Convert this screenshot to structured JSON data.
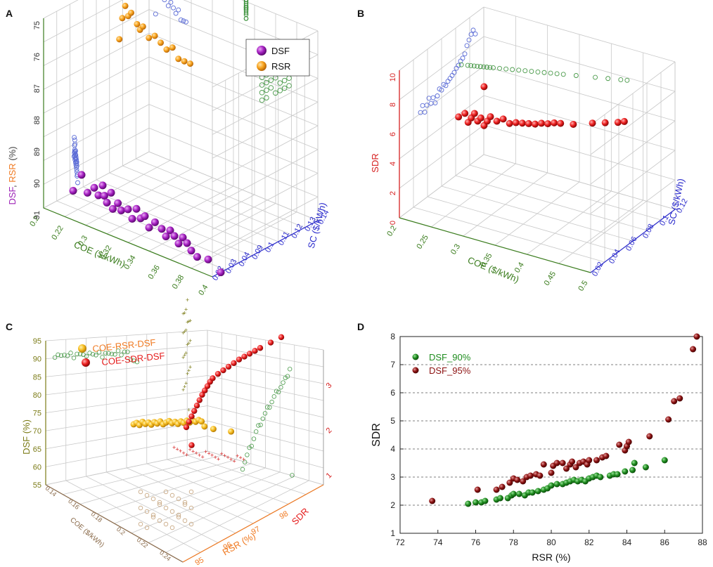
{
  "chart_data": [
    {
      "panel": "A",
      "type": "scatter",
      "legend": [
        "DSF",
        "RSR"
      ],
      "legend_placement": "top-right",
      "axes": {
        "x": {
          "label": "COE ($/kWh)",
          "ticks": [
            "0.2",
            "0.22",
            "0.3",
            "0.32",
            "0.34",
            "0.36",
            "0.38",
            "0.4"
          ]
        },
        "y": {
          "label": "SC ($/kWh)",
          "ticks": [
            "0.02",
            "0.03",
            "0.04",
            "0.09",
            "0.1",
            "0.11",
            "0.12",
            "0.13",
            "0.14"
          ]
        },
        "z": {
          "label_dsf": "DSF",
          "label_sep": ", ",
          "label_rsr": "RSR",
          "label_unit": " (%)",
          "ticks": [
            "91",
            "90",
            "89",
            "88",
            "87",
            "76",
            "75"
          ]
        }
      },
      "series": [
        {
          "name": "DSF",
          "color": "#9b1fb5",
          "points": [
            [
              0.225,
              90.8
            ],
            [
              0.235,
              89.8
            ],
            [
              0.242,
              90.6
            ],
            [
              0.25,
              90.2
            ],
            [
              0.255,
              90.5
            ],
            [
              0.26,
              89.9
            ],
            [
              0.262,
              90.4
            ],
            [
              0.265,
              90.7
            ],
            [
              0.27,
              90.1
            ],
            [
              0.272,
              90.9
            ],
            [
              0.278,
              90.5
            ],
            [
              0.282,
              90.8
            ],
            [
              0.29,
              90.6
            ],
            [
              0.295,
              91.0
            ],
            [
              0.3,
              90.4
            ],
            [
              0.305,
              90.8
            ],
            [
              0.31,
              90.6
            ],
            [
              0.315,
              91.1
            ],
            [
              0.322,
              90.7
            ],
            [
              0.33,
              90.9
            ],
            [
              0.335,
              91.2
            ],
            [
              0.34,
              90.8
            ],
            [
              0.345,
              91.0
            ],
            [
              0.35,
              91.3
            ],
            [
              0.355,
              90.9
            ],
            [
              0.36,
              91.1
            ],
            [
              0.365,
              91.4
            ],
            [
              0.372,
              91.6
            ],
            [
              0.385,
              91.5
            ],
            [
              0.4,
              91.9
            ]
          ]
        },
        {
          "name": "RSR",
          "color": "#f4a21e",
          "points": [
            [
              0.23,
              75.6
            ],
            [
              0.235,
              75.1
            ],
            [
              0.24,
              74.8
            ],
            [
              0.245,
              75.0
            ],
            [
              0.25,
              74.9
            ],
            [
              0.26,
              75.1
            ],
            [
              0.265,
              75.2
            ],
            [
              0.27,
              75.1
            ],
            [
              0.28,
              75.3
            ],
            [
              0.29,
              75.2
            ],
            [
              0.3,
              75.3
            ],
            [
              0.31,
              75.4
            ],
            [
              0.32,
              75.3
            ],
            [
              0.33,
              75.5
            ],
            [
              0.34,
              75.5
            ],
            [
              0.35,
              75.5
            ]
          ]
        }
      ]
    },
    {
      "panel": "B",
      "type": "scatter",
      "axes": {
        "x": {
          "label": "COE ($/kWh)",
          "ticks": [
            "0.2",
            "0.25",
            "0.3",
            "0.35",
            "0.4",
            "0.45",
            "0.5"
          ]
        },
        "y": {
          "label": "SC ($/kWh)",
          "ticks": [
            "0.02",
            "0.04",
            "0.06",
            "0.08",
            "0.1",
            "0.12"
          ]
        },
        "z": {
          "label": "SDR",
          "ticks": [
            "0",
            "2",
            "4",
            "6",
            "8",
            "10"
          ]
        }
      },
      "series": [
        {
          "name": "",
          "color": "#e51c1c",
          "points": [
            [
              0.22,
              5.2
            ],
            [
              0.23,
              5.6
            ],
            [
              0.235,
              5.0
            ],
            [
              0.24,
              5.4
            ],
            [
              0.245,
              5.8
            ],
            [
              0.25,
              5.3
            ],
            [
              0.255,
              5.6
            ],
            [
              0.26,
              5.1
            ],
            [
              0.265,
              5.5
            ],
            [
              0.27,
              5.9
            ],
            [
              0.28,
              5.7
            ],
            [
              0.29,
              6.0
            ],
            [
              0.3,
              5.8
            ],
            [
              0.31,
              6.0
            ],
            [
              0.32,
              6.1
            ],
            [
              0.33,
              6.2
            ],
            [
              0.34,
              6.3
            ],
            [
              0.35,
              6.5
            ],
            [
              0.36,
              6.6
            ],
            [
              0.37,
              6.8
            ],
            [
              0.38,
              6.9
            ],
            [
              0.4,
              7.1
            ],
            [
              0.43,
              7.6
            ],
            [
              0.45,
              7.9
            ],
            [
              0.47,
              8.2
            ],
            [
              0.48,
              8.4
            ],
            [
              0.26,
              8.0
            ]
          ]
        }
      ]
    },
    {
      "panel": "C",
      "type": "scatter",
      "legend": [
        "COE-RSR-DSF",
        "COE-SDR-DSF"
      ],
      "legend_placement": "top-left",
      "axes": {
        "x": {
          "label": "RSR (%)",
          "ticks": [
            "95",
            "96",
            "97",
            "98"
          ]
        },
        "x2": {
          "label": "SDR",
          "ticks": [
            "1",
            "2",
            "3"
          ]
        },
        "y": {
          "label": "COE ($/kWh)",
          "ticks": [
            "0.14",
            "0.16",
            "0.18",
            "0.2",
            "0.22",
            "0.24"
          ]
        },
        "z": {
          "label": "DSF (%)",
          "ticks": [
            "55",
            "60",
            "65",
            "70",
            "75",
            "80",
            "85",
            "90",
            "95"
          ]
        }
      },
      "series": [
        {
          "name": "COE-RSR-DSF",
          "color": "#f4b71e",
          "points": [
            [
              94.9,
              71.8
            ],
            [
              95.0,
              72.2
            ],
            [
              95.1,
              71.6
            ],
            [
              95.2,
              72.5
            ],
            [
              95.3,
              71.9
            ],
            [
              95.4,
              72.3
            ],
            [
              95.5,
              71.7
            ],
            [
              95.6,
              72.4
            ],
            [
              95.7,
              72.0
            ],
            [
              95.8,
              72.6
            ],
            [
              95.9,
              71.8
            ],
            [
              96.0,
              72.3
            ],
            [
              96.1,
              72.7
            ],
            [
              96.2,
              72.1
            ],
            [
              96.3,
              72.5
            ],
            [
              96.4,
              71.9
            ],
            [
              96.5,
              72.6
            ],
            [
              96.6,
              72.2
            ],
            [
              96.7,
              72.8
            ],
            [
              96.8,
              72.3
            ],
            [
              96.9,
              72.9
            ],
            [
              97.0,
              72.5
            ],
            [
              97.1,
              73.0
            ],
            [
              97.2,
              72.6
            ],
            [
              97.3,
              71.2
            ],
            [
              97.6,
              70.5
            ],
            [
              98.2,
              69.8
            ]
          ]
        },
        {
          "name": "COE-SDR-DSF",
          "color": "#e51c1c",
          "points": [
            [
              1.1,
              71.0
            ],
            [
              1.15,
              72.5
            ],
            [
              1.2,
              74.0
            ],
            [
              1.25,
              75.5
            ],
            [
              1.3,
              77.0
            ],
            [
              1.35,
              78.5
            ],
            [
              1.4,
              80.0
            ],
            [
              1.45,
              81.2
            ],
            [
              1.5,
              82.4
            ],
            [
              1.55,
              83.6
            ],
            [
              1.6,
              84.6
            ],
            [
              1.7,
              85.8
            ],
            [
              1.8,
              86.8
            ],
            [
              1.9,
              87.8
            ],
            [
              2.0,
              88.8
            ],
            [
              2.1,
              89.8
            ],
            [
              2.2,
              90.6
            ],
            [
              2.3,
              91.4
            ],
            [
              2.4,
              92.2
            ],
            [
              2.5,
              93.0
            ],
            [
              2.7,
              94.5
            ],
            [
              2.9,
              96.0
            ],
            [
              1.2,
              66.0
            ]
          ]
        }
      ]
    },
    {
      "panel": "D",
      "type": "scatter",
      "xlabel": "RSR (%)",
      "ylabel": "SDR",
      "xlim": [
        72,
        88
      ],
      "ylim": [
        1,
        8
      ],
      "xticks": [
        72,
        74,
        76,
        78,
        80,
        82,
        84,
        86,
        88
      ],
      "yticks": [
        1,
        2,
        3,
        4,
        5,
        6,
        7,
        8
      ],
      "grid": "horizontal dashed",
      "legend_placement": "top-left",
      "series": [
        {
          "name": "DSF_90%",
          "color": "#1e8c1e",
          "points": [
            [
              75.6,
              2.05
            ],
            [
              76.0,
              2.1
            ],
            [
              76.3,
              2.1
            ],
            [
              76.5,
              2.15
            ],
            [
              77.1,
              2.2
            ],
            [
              77.3,
              2.25
            ],
            [
              77.7,
              2.25
            ],
            [
              77.9,
              2.35
            ],
            [
              78.0,
              2.4
            ],
            [
              78.3,
              2.4
            ],
            [
              78.6,
              2.35
            ],
            [
              78.8,
              2.45
            ],
            [
              79.0,
              2.45
            ],
            [
              79.3,
              2.5
            ],
            [
              79.6,
              2.55
            ],
            [
              79.8,
              2.6
            ],
            [
              80.0,
              2.7
            ],
            [
              80.3,
              2.75
            ],
            [
              80.6,
              2.75
            ],
            [
              80.8,
              2.8
            ],
            [
              81.0,
              2.85
            ],
            [
              81.2,
              2.9
            ],
            [
              81.4,
              2.85
            ],
            [
              81.6,
              2.9
            ],
            [
              81.8,
              2.85
            ],
            [
              82.0,
              2.95
            ],
            [
              82.2,
              3.0
            ],
            [
              82.4,
              3.05
            ],
            [
              82.6,
              3.0
            ],
            [
              83.1,
              3.05
            ],
            [
              83.3,
              3.1
            ],
            [
              83.5,
              3.1
            ],
            [
              83.9,
              3.2
            ],
            [
              84.3,
              3.25
            ],
            [
              84.4,
              3.5
            ],
            [
              85.0,
              3.35
            ],
            [
              86.0,
              3.6
            ]
          ]
        },
        {
          "name": "DSF_95%",
          "color": "#8b1010",
          "points": [
            [
              73.7,
              2.15
            ],
            [
              76.1,
              2.55
            ],
            [
              77.1,
              2.55
            ],
            [
              77.4,
              2.65
            ],
            [
              77.8,
              2.8
            ],
            [
              78.0,
              2.95
            ],
            [
              78.2,
              2.9
            ],
            [
              78.5,
              2.85
            ],
            [
              78.7,
              3.0
            ],
            [
              78.9,
              3.05
            ],
            [
              79.2,
              3.1
            ],
            [
              79.4,
              3.05
            ],
            [
              79.6,
              3.45
            ],
            [
              80.0,
              3.15
            ],
            [
              80.1,
              3.4
            ],
            [
              80.3,
              3.5
            ],
            [
              80.6,
              3.5
            ],
            [
              80.8,
              3.3
            ],
            [
              81.0,
              3.45
            ],
            [
              81.1,
              3.55
            ],
            [
              81.3,
              3.35
            ],
            [
              81.5,
              3.5
            ],
            [
              81.7,
              3.55
            ],
            [
              81.9,
              3.45
            ],
            [
              82.0,
              3.6
            ],
            [
              82.4,
              3.6
            ],
            [
              82.7,
              3.7
            ],
            [
              82.9,
              3.75
            ],
            [
              83.6,
              4.15
            ],
            [
              83.9,
              3.95
            ],
            [
              84.0,
              4.1
            ],
            [
              84.1,
              4.25
            ],
            [
              85.2,
              4.45
            ],
            [
              86.2,
              5.05
            ],
            [
              86.5,
              5.7
            ],
            [
              86.8,
              5.8
            ],
            [
              87.5,
              7.55
            ],
            [
              87.7,
              8.0
            ]
          ]
        }
      ]
    }
  ],
  "panel_letters": [
    "A",
    "B",
    "C",
    "D"
  ]
}
